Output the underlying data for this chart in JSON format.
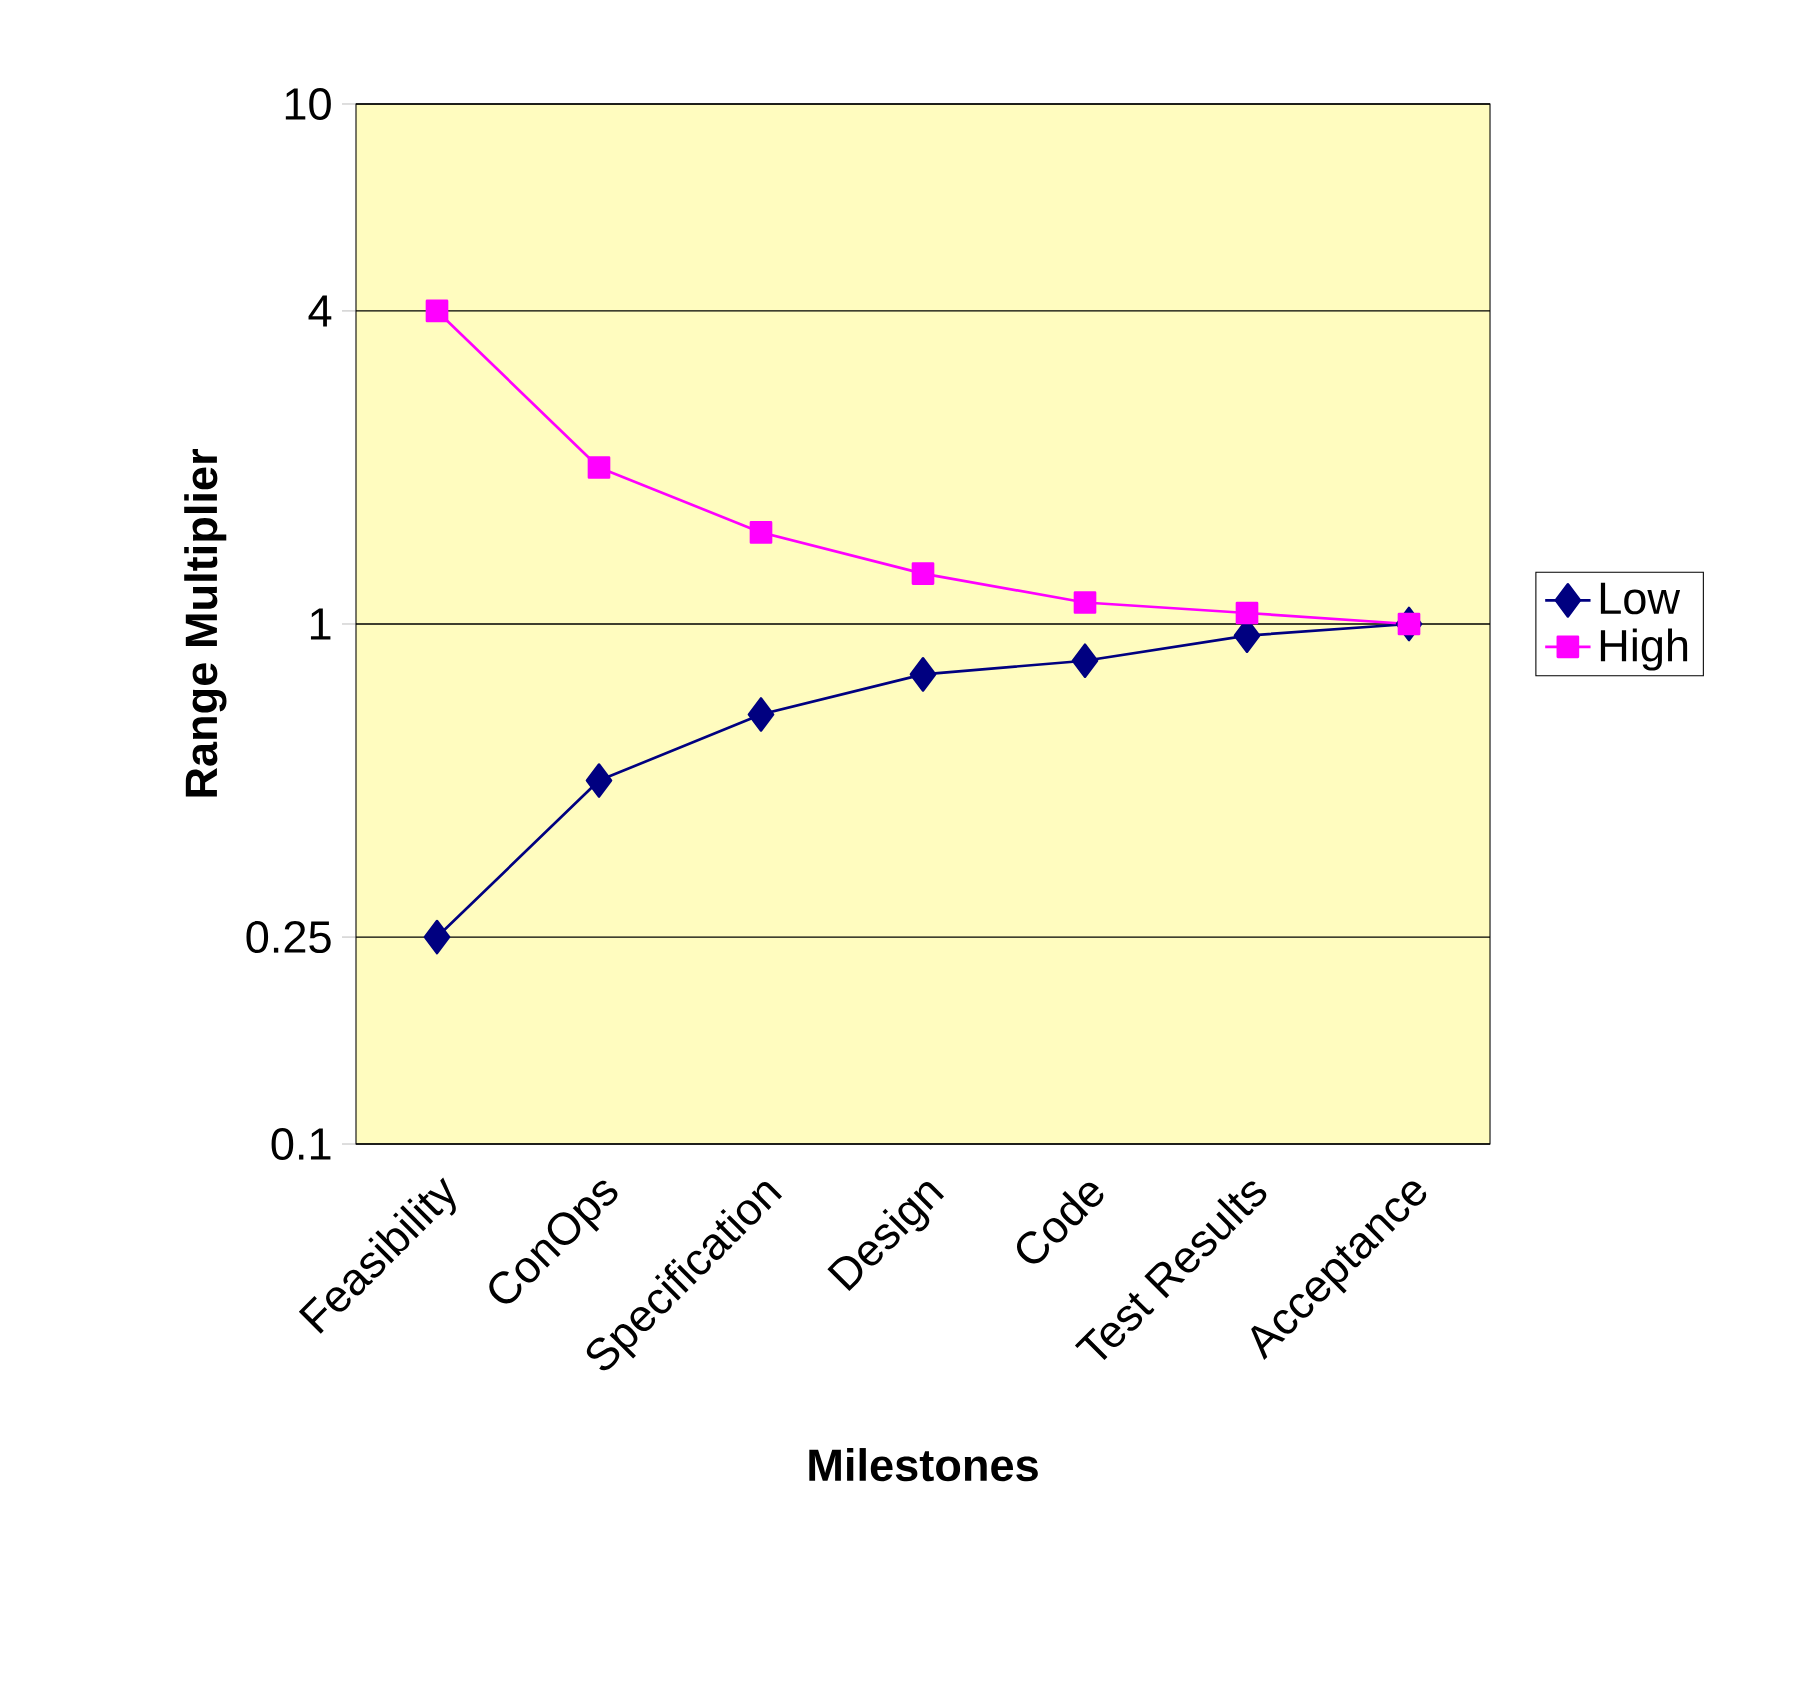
{
  "chart_data": {
    "type": "line",
    "xlabel": "Milestones",
    "ylabel": "Range Multiplier",
    "categories": [
      "Feasibility",
      "ConOps",
      "Specification",
      "Design",
      "Code",
      "Test Results",
      "Acceptance"
    ],
    "series": [
      {
        "name": "Low",
        "color": "#000080",
        "marker": "diamond",
        "values": [
          0.25,
          0.5,
          0.67,
          0.8,
          0.85,
          0.95,
          1.0
        ]
      },
      {
        "name": "High",
        "color": "#ff00ff",
        "marker": "square",
        "values": [
          4,
          2,
          1.5,
          1.25,
          1.1,
          1.05,
          1.0
        ]
      }
    ],
    "log": "y",
    "ylim": [
      0.1,
      10
    ],
    "yticks": [
      0.1,
      0.25,
      1,
      4,
      10
    ],
    "grid": "y",
    "legend": "right",
    "line_style": "solid"
  }
}
